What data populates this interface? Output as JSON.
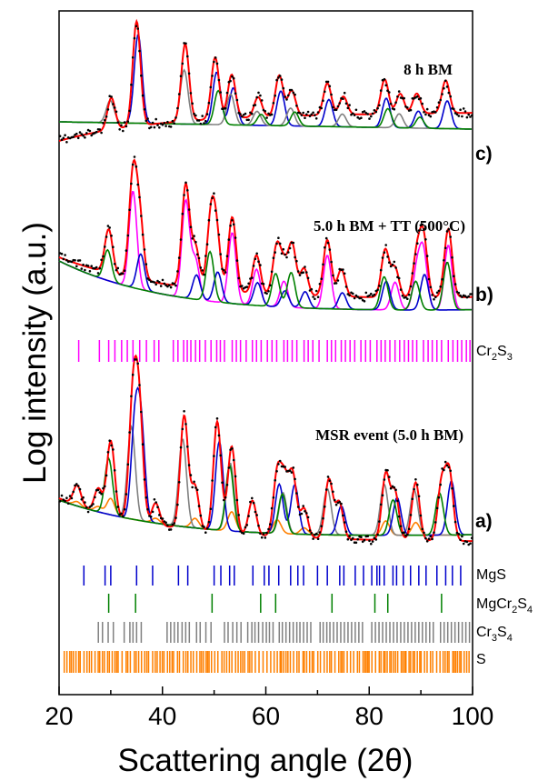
{
  "chart_data": {
    "type": "line",
    "xlabel": "Scattering angle (2θ)",
    "ylabel": "Log intensity (a.u.)",
    "xlim": [
      20,
      100
    ],
    "xticks": [
      "20",
      "40",
      "60",
      "80",
      "100"
    ],
    "panels": [
      {
        "label": "c)",
        "annotation": "8 h BM",
        "peaks": [
          [
            30.1,
            35
          ],
          [
            35.0,
            115
          ],
          [
            44.4,
            85
          ],
          [
            50.2,
            68
          ],
          [
            53.4,
            48
          ],
          [
            58.5,
            22
          ],
          [
            62.6,
            45
          ],
          [
            65.0,
            28
          ],
          [
            71.9,
            35
          ],
          [
            75.0,
            20
          ],
          [
            83.0,
            38
          ],
          [
            86.0,
            22
          ],
          [
            89.2,
            22
          ],
          [
            94.8,
            36
          ]
        ]
      },
      {
        "label": "b)",
        "annotation": "5.0 h BM + TT (500°C)",
        "peaks": [
          [
            29.6,
            48
          ],
          [
            34.3,
            112
          ],
          [
            35.6,
            65
          ],
          [
            44.5,
            112
          ],
          [
            46.4,
            45
          ],
          [
            49.4,
            78
          ],
          [
            50.5,
            55
          ],
          [
            53.5,
            82
          ],
          [
            58.2,
            42
          ],
          [
            62.1,
            52
          ],
          [
            63.5,
            30
          ],
          [
            65.1,
            55
          ],
          [
            67.4,
            30
          ],
          [
            71.9,
            62
          ],
          [
            74.6,
            30
          ],
          [
            83.1,
            52
          ],
          [
            85.0,
            32
          ],
          [
            89.2,
            45
          ],
          [
            90.5,
            65
          ],
          [
            95.3,
            75
          ]
        ]
      },
      {
        "label": "a)",
        "annotation": "MSR event (5.0 h BM)",
        "peaks": [
          [
            23.5,
            22
          ],
          [
            27.6,
            26
          ],
          [
            30.0,
            82
          ],
          [
            34.3,
            130
          ],
          [
            35.5,
            120
          ],
          [
            38.7,
            24
          ],
          [
            44.2,
            124
          ],
          [
            46.3,
            48
          ],
          [
            50.6,
            122
          ],
          [
            53.4,
            96
          ],
          [
            57.4,
            38
          ],
          [
            62.2,
            68
          ],
          [
            63.6,
            58
          ],
          [
            65.2,
            68
          ],
          [
            67.4,
            32
          ],
          [
            72.2,
            65
          ],
          [
            74.2,
            40
          ],
          [
            83.2,
            72
          ],
          [
            85.0,
            52
          ],
          [
            89.0,
            64
          ],
          [
            94.0,
            62
          ],
          [
            95.5,
            74
          ]
        ]
      }
    ],
    "reference_phases": [
      {
        "name": "Cr2S3",
        "color": "#ff00ff",
        "positions": [
          23.8,
          27.8,
          29.6,
          30.8,
          32.1,
          33.2,
          34.3,
          35.6,
          36.9,
          38.4,
          39.3,
          42.1,
          43.0,
          44.1,
          44.8,
          45.5,
          46.4,
          47.2,
          48.3,
          49.4,
          50.5,
          51.2,
          52.0,
          53.5,
          54.3,
          55.1,
          56.2,
          57.4,
          58.2,
          59.1,
          60.3,
          61.2,
          62.1,
          63.5,
          64.2,
          65.1,
          66.0,
          67.4,
          68.2,
          69.1,
          70.3,
          71.9,
          72.7,
          73.5,
          74.6,
          75.4,
          76.3,
          77.2,
          78.4,
          79.3,
          80.2,
          81.5,
          82.3,
          83.1,
          84.0,
          85.0,
          85.9,
          86.8,
          87.6,
          88.4,
          89.2,
          90.5,
          91.4,
          92.2,
          93.1,
          94.0,
          95.3,
          96.2,
          97.1,
          97.9,
          98.8,
          99.5
        ]
      },
      {
        "name": "MgS",
        "color": "#0000cc",
        "positions": [
          24.8,
          28.9,
          30.0,
          35.0,
          38.1,
          43.1,
          44.9,
          50.0,
          51.3,
          53.0,
          53.9,
          57.5,
          59.7,
          60.6,
          62.5,
          64.8,
          66.2,
          67.3,
          70.0,
          71.9,
          74.3,
          75.1,
          77.3,
          78.9,
          80.5,
          81.5,
          82.0,
          82.9,
          84.6,
          85.3,
          86.6,
          88.0,
          89.6,
          91.0,
          93.1,
          94.8,
          96.1,
          97.7
        ]
      },
      {
        "name": "MgCr2S4",
        "color": "#008000",
        "positions": [
          29.6,
          34.8,
          49.6,
          59.0,
          61.9,
          72.8,
          81.1,
          83.6,
          94.0
        ]
      },
      {
        "name": "Cr3S4",
        "color": "#808080",
        "positions": [
          27.6,
          28.4,
          29.5,
          30.5,
          32.6,
          33.7,
          34.3,
          35.0,
          35.9,
          40.9,
          41.6,
          42.3,
          43.0,
          43.8,
          44.5,
          45.2,
          46.6,
          47.3,
          48.4,
          49.4,
          52.0,
          52.7,
          53.6,
          54.4,
          55.2,
          56.5,
          57.3,
          57.9,
          58.6,
          59.4,
          60.1,
          60.7,
          61.4,
          62.6,
          63.2,
          63.9,
          64.6,
          65.3,
          66.0,
          66.6,
          67.3,
          68.0,
          68.7,
          70.5,
          71.1,
          71.8,
          72.4,
          73.1,
          73.8,
          74.5,
          75.2,
          75.9,
          76.6,
          77.3,
          78.0,
          78.7,
          80.5,
          81.2,
          81.9,
          82.6,
          83.3,
          84.0,
          84.7,
          85.4,
          86.1,
          86.8,
          87.5,
          88.2,
          88.9,
          89.6,
          90.3,
          91.0,
          91.7,
          92.4,
          93.8,
          94.5,
          95.2,
          95.9,
          96.6,
          97.3,
          98.0,
          98.7,
          99.4
        ]
      },
      {
        "name": "S",
        "color": "#ff8000",
        "dense": true,
        "range": [
          21.0,
          99.5
        ]
      }
    ],
    "legend_labels": {
      "Cr2S3": {
        "base": "Cr",
        "sub1": "2",
        "mid": "S",
        "sub2": "3"
      },
      "MgS": {
        "base": "MgS"
      },
      "MgCr2S4": {
        "base": "MgCr",
        "sub1": "2",
        "mid": "S",
        "sub2": "4"
      },
      "Cr3S4": {
        "base": "Cr",
        "sub1": "3",
        "mid": "S",
        "sub2": "4"
      },
      "S": {
        "base": "S"
      }
    },
    "series_colors": {
      "observed": "#000000",
      "fit_total": "#ff0000",
      "MgS": "#0000cc",
      "MgCr2S4": "#008000",
      "Cr3S4": "#808080",
      "Cr2S3": "#ff00ff",
      "S": "#ff8000"
    },
    "grid": false
  }
}
